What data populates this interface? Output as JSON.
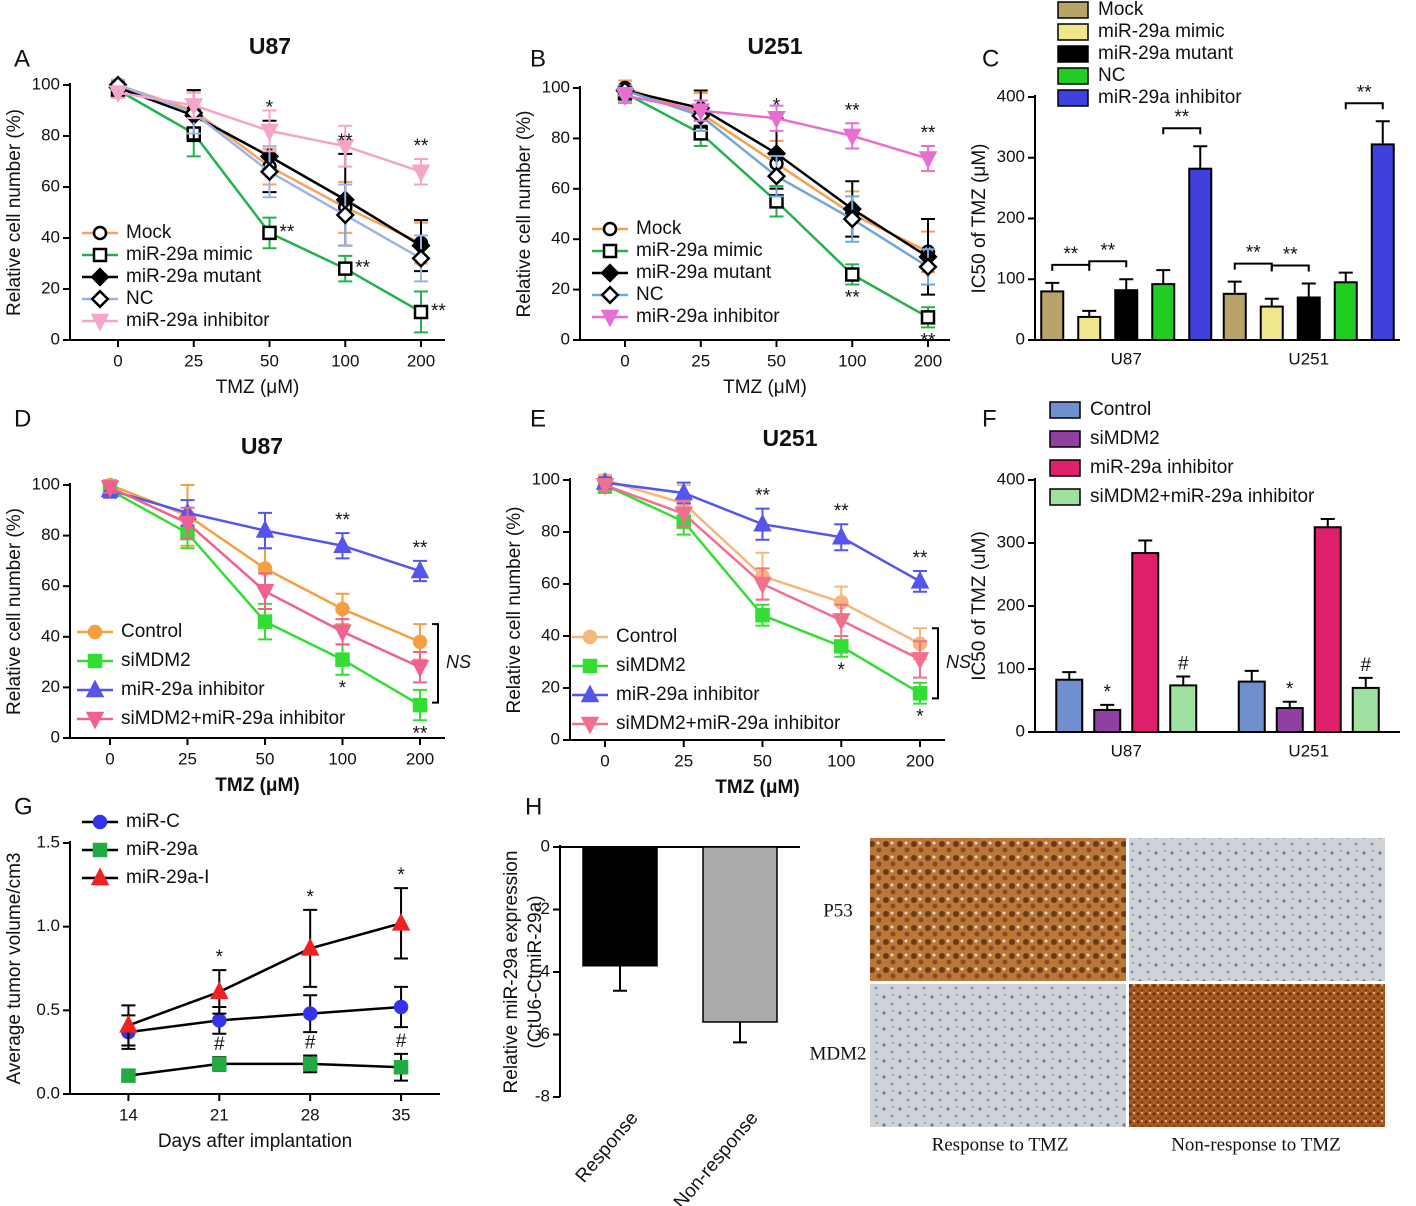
{
  "chart_data": [
    {
      "type": "line",
      "label": "A",
      "title": "U87",
      "xlabel": "TMZ (μM)",
      "ylabel": "Relative cell number (%)",
      "categories": [
        "0",
        "25",
        "50",
        "100",
        "200"
      ],
      "ylim": [
        0,
        100
      ],
      "yticks": [
        0,
        20,
        40,
        60,
        80,
        100
      ],
      "series": [
        {
          "name": "Mock",
          "color": "#f4a460",
          "marker": "circle",
          "hollow": true,
          "values": [
            100,
            90,
            68,
            52,
            38
          ],
          "errors": [
            2,
            8,
            7,
            10,
            8
          ]
        },
        {
          "name": "miR-29a mimic",
          "color": "#22b14c",
          "marker": "square",
          "hollow": true,
          "values": [
            98,
            81,
            42,
            28,
            11
          ],
          "errors": [
            3,
            9,
            6,
            5,
            8
          ]
        },
        {
          "name": "miR-29a mutant",
          "color": "#000000",
          "marker": "diamond",
          "hollow": false,
          "values": [
            99,
            88,
            72,
            55,
            37
          ],
          "errors": [
            2,
            10,
            14,
            18,
            10
          ]
        },
        {
          "name": "NC",
          "color": "#9db3e8",
          "marker": "diamond",
          "hollow": true,
          "values": [
            100,
            89,
            66,
            49,
            32
          ],
          "errors": [
            2,
            8,
            10,
            12,
            9
          ]
        },
        {
          "name": "miR-29a inhibitor",
          "color": "#f4a6c8",
          "marker": "triangle-down",
          "hollow": false,
          "values": [
            97,
            92,
            82,
            76,
            66
          ],
          "errors": [
            2,
            5,
            8,
            8,
            5
          ]
        }
      ],
      "annotations": [
        {
          "text": "*",
          "x": "50",
          "series": "miR-29a mutant",
          "position": "above"
        },
        {
          "text": "**",
          "x": "50",
          "series": "miR-29a mimic",
          "position": "right"
        },
        {
          "text": "**",
          "x": "100",
          "series": "miR-29a mutant",
          "position": "above"
        },
        {
          "text": "**",
          "x": "100",
          "series": "miR-29a mimic",
          "position": "right"
        },
        {
          "text": "**",
          "x": "200",
          "series": "miR-29a inhibitor",
          "position": "above"
        },
        {
          "text": "**",
          "x": "200",
          "series": "miR-29a mimic",
          "position": "right"
        }
      ]
    },
    {
      "type": "line",
      "label": "B",
      "title": "U251",
      "xlabel": "TMZ (μM)",
      "ylabel": "Relative cell number (%)",
      "categories": [
        "0",
        "25",
        "50",
        "100",
        "200"
      ],
      "ylim": [
        0,
        100
      ],
      "yticks": [
        0,
        20,
        40,
        60,
        80,
        100
      ],
      "series": [
        {
          "name": "Mock",
          "color": "#f5a04a",
          "marker": "circle",
          "hollow": true,
          "values": [
            100,
            90,
            70,
            50,
            35
          ],
          "errors": [
            3,
            8,
            9,
            9,
            8
          ]
        },
        {
          "name": "miR-29a mimic",
          "color": "#22b14c",
          "marker": "square",
          "hollow": true,
          "values": [
            98,
            82,
            55,
            26,
            9
          ],
          "errors": [
            3,
            5,
            6,
            4,
            4
          ]
        },
        {
          "name": "miR-29a mutant",
          "color": "#000000",
          "marker": "diamond",
          "hollow": false,
          "values": [
            99,
            92,
            74,
            52,
            33
          ],
          "errors": [
            2,
            7,
            14,
            11,
            15
          ]
        },
        {
          "name": "NC",
          "color": "#6fa8dc",
          "marker": "diamond",
          "hollow": true,
          "values": [
            99,
            89,
            65,
            48,
            29
          ],
          "errors": [
            2,
            6,
            8,
            9,
            7
          ]
        },
        {
          "name": "miR-29a inhibitor",
          "color": "#e86fcf",
          "marker": "triangle-down",
          "hollow": false,
          "values": [
            97,
            91,
            88,
            81,
            72
          ],
          "errors": [
            3,
            4,
            5,
            5,
            5
          ]
        }
      ],
      "annotations": [
        {
          "text": "*",
          "x": "50",
          "series": "miR-29a mutant",
          "position": "above"
        },
        {
          "text": "**",
          "x": "100",
          "series": "miR-29a inhibitor",
          "position": "above"
        },
        {
          "text": "**",
          "x": "100",
          "series": "miR-29a mimic",
          "position": "below"
        },
        {
          "text": "**",
          "x": "200",
          "series": "miR-29a inhibitor",
          "position": "above"
        },
        {
          "text": "**",
          "x": "200",
          "series": "miR-29a mimic",
          "position": "below"
        }
      ]
    },
    {
      "type": "bar",
      "label": "C",
      "ylabel": "IC50 of TMZ (μM)",
      "categories": [
        "U87",
        "U251"
      ],
      "ylim": [
        0,
        400
      ],
      "yticks": [
        0,
        100,
        200,
        300,
        400
      ],
      "series": [
        {
          "name": "Mock",
          "color": "#b8a46a",
          "values": [
            80,
            76
          ],
          "errors": [
            14,
            20
          ]
        },
        {
          "name": "miR-29a mimic",
          "color": "#f0e68c",
          "values": [
            38,
            55
          ],
          "errors": [
            10,
            13
          ]
        },
        {
          "name": "miR-29a mutant",
          "color": "#000000",
          "values": [
            82,
            70
          ],
          "errors": [
            18,
            23
          ]
        },
        {
          "name": "NC",
          "color": "#22cc22",
          "values": [
            92,
            95
          ],
          "errors": [
            23,
            16
          ]
        },
        {
          "name": "miR-29a inhibitor",
          "color": "#4040dd",
          "values": [
            282,
            322
          ],
          "errors": [
            37,
            38
          ]
        }
      ],
      "annotations": [
        {
          "text": "**",
          "x": "U87",
          "series": [
            "Mock",
            "miR-29a mimic"
          ]
        },
        {
          "text": "**",
          "x": "U87",
          "series": [
            "miR-29a mimic",
            "miR-29a mutant"
          ]
        },
        {
          "text": "**",
          "x": "U87",
          "series": [
            "NC",
            "miR-29a inhibitor"
          ]
        },
        {
          "text": "**",
          "x": "U251",
          "series": [
            "Mock",
            "miR-29a mimic"
          ]
        },
        {
          "text": "**",
          "x": "U251",
          "series": [
            "miR-29a mimic",
            "miR-29a mutant"
          ]
        },
        {
          "text": "**",
          "x": "U251",
          "series": [
            "NC",
            "miR-29a inhibitor"
          ]
        }
      ]
    },
    {
      "type": "line",
      "label": "D",
      "title": "U87",
      "xlabel": "TMZ (μM)",
      "ylabel": "Relative cell number (%)",
      "categories": [
        "0",
        "25",
        "50",
        "100",
        "200"
      ],
      "ylim": [
        0,
        100
      ],
      "yticks": [
        0,
        20,
        40,
        60,
        80,
        100
      ],
      "series": [
        {
          "name": "Control",
          "color": "#f5a040",
          "marker": "circle",
          "hollow": false,
          "values": [
            100,
            88,
            67,
            51,
            38
          ],
          "errors": [
            2,
            12,
            8,
            6,
            7
          ]
        },
        {
          "name": "siMDM2",
          "color": "#33dd33",
          "marker": "square",
          "hollow": false,
          "values": [
            98,
            81,
            46,
            31,
            13
          ],
          "errors": [
            3,
            6,
            7,
            6,
            6
          ]
        },
        {
          "name": "miR-29a inhibitor",
          "color": "#5555ee",
          "marker": "triangle",
          "hollow": false,
          "values": [
            98,
            89,
            82,
            76,
            66
          ],
          "errors": [
            3,
            5,
            7,
            5,
            4
          ]
        },
        {
          "name": "siMDM2+miR-29a inhibitor",
          "color": "#f06090",
          "marker": "triangle-down",
          "hollow": false,
          "values": [
            99,
            85,
            58,
            42,
            28
          ],
          "errors": [
            2,
            6,
            7,
            5,
            6
          ]
        }
      ],
      "annotations": [
        {
          "text": "**",
          "x": "100",
          "series": "miR-29a inhibitor",
          "position": "above"
        },
        {
          "text": "**",
          "x": "200",
          "series": "miR-29a inhibitor",
          "position": "above"
        },
        {
          "text": "*",
          "x": "100",
          "series": "siMDM2",
          "position": "below"
        },
        {
          "text": "**",
          "x": "200",
          "series": "siMDM2",
          "position": "below"
        },
        {
          "text": "NS",
          "x": "200",
          "series": [
            "Control",
            "siMDM2+miR-29a inhibitor"
          ]
        }
      ]
    },
    {
      "type": "line",
      "label": "E",
      "title": "U251",
      "xlabel": "TMZ (μM)",
      "ylabel": "Relative cell number (%)",
      "categories": [
        "0",
        "25",
        "50",
        "100",
        "200"
      ],
      "ylim": [
        0,
        100
      ],
      "yticks": [
        0,
        20,
        40,
        60,
        80,
        100
      ],
      "series": [
        {
          "name": "Control",
          "color": "#f5b87a",
          "marker": "circle",
          "hollow": false,
          "values": [
            100,
            91,
            63,
            53,
            37
          ],
          "errors": [
            2,
            7,
            9,
            6,
            6
          ]
        },
        {
          "name": "siMDM2",
          "color": "#33dd33",
          "marker": "square",
          "hollow": false,
          "values": [
            98,
            84,
            48,
            36,
            18
          ],
          "errors": [
            3,
            5,
            4,
            4,
            4
          ]
        },
        {
          "name": "miR-29a inhibitor",
          "color": "#5555ee",
          "marker": "triangle",
          "hollow": false,
          "values": [
            99,
            95,
            83,
            78,
            61
          ],
          "errors": [
            2,
            4,
            6,
            5,
            4
          ]
        },
        {
          "name": "siMDM2+miR-29a inhibitor",
          "color": "#f07090",
          "marker": "triangle-down",
          "hollow": false,
          "values": [
            98,
            87,
            60,
            46,
            31
          ],
          "errors": [
            2,
            5,
            6,
            6,
            7
          ]
        }
      ],
      "annotations": [
        {
          "text": "**",
          "x": "50",
          "series": "miR-29a inhibitor",
          "position": "above"
        },
        {
          "text": "**",
          "x": "100",
          "series": "miR-29a inhibitor",
          "position": "above"
        },
        {
          "text": "**",
          "x": "200",
          "series": "miR-29a inhibitor",
          "position": "above"
        },
        {
          "text": "*",
          "x": "100",
          "series": "siMDM2",
          "position": "below"
        },
        {
          "text": "*",
          "x": "200",
          "series": "siMDM2",
          "position": "below"
        },
        {
          "text": "NS",
          "x": "200",
          "series": [
            "Control",
            "siMDM2+miR-29a inhibitor"
          ]
        }
      ]
    },
    {
      "type": "bar",
      "label": "F",
      "ylabel": "IC50 of TMZ (uM)",
      "categories": [
        "U87",
        "U251"
      ],
      "ylim": [
        0,
        400
      ],
      "yticks": [
        0,
        100,
        200,
        300,
        400
      ],
      "series": [
        {
          "name": "Control",
          "color": "#6f8fcf",
          "values": [
            83,
            80
          ],
          "errors": [
            12,
            17
          ]
        },
        {
          "name": "siMDM2",
          "color": "#9040a0",
          "values": [
            35,
            38
          ],
          "errors": [
            8,
            10
          ]
        },
        {
          "name": "miR-29a inhibitor",
          "color": "#e0206a",
          "values": [
            284,
            325
          ],
          "errors": [
            20,
            13
          ]
        },
        {
          "name": "siMDM2+miR-29a inhibitor",
          "color": "#a0e0a0",
          "values": [
            74,
            70
          ],
          "errors": [
            14,
            16
          ]
        }
      ],
      "annotations": [
        {
          "text": "*",
          "x": "U87",
          "series": "siMDM2",
          "position": "above"
        },
        {
          "text": "#",
          "x": "U87",
          "series": "siMDM2+miR-29a inhibitor",
          "position": "above"
        },
        {
          "text": "*",
          "x": "U251",
          "series": "siMDM2",
          "position": "above"
        },
        {
          "text": "#",
          "x": "U251",
          "series": "siMDM2+miR-29a inhibitor",
          "position": "above"
        }
      ]
    },
    {
      "type": "line",
      "label": "G",
      "xlabel": "Days after implantation",
      "ylabel": "Average tumor volume/cm3",
      "x": [
        14,
        21,
        28,
        35
      ],
      "xlim": [
        9.5,
        38
      ],
      "xticks": [
        14,
        21,
        28,
        35
      ],
      "ylim": [
        0,
        1.5
      ],
      "yticks": [
        {
          "value": 0,
          "label": "0.0"
        },
        {
          "value": 0.5,
          "label": "0.5"
        },
        {
          "value": 1,
          "label": "1.0"
        },
        {
          "value": 1.5,
          "label": "1.5"
        }
      ],
      "line_color": "#000000",
      "series": [
        {
          "name": "miR-C",
          "color": "#3333ee",
          "marker": "circle",
          "hollow": false,
          "values": [
            0.37,
            0.44,
            0.48,
            0.52
          ],
          "errors": [
            0.1,
            0.08,
            0.11,
            0.12
          ]
        },
        {
          "name": "miR-29a",
          "color": "#22aa44",
          "marker": "square",
          "hollow": false,
          "values": [
            0.11,
            0.18,
            0.18,
            0.16
          ],
          "errors": [
            0.02,
            0.04,
            0.05,
            0.08
          ]
        },
        {
          "name": "miR-29a-I",
          "color": "#ee2222",
          "marker": "triangle",
          "hollow": false,
          "values": [
            0.41,
            0.61,
            0.87,
            1.02
          ],
          "errors": [
            0.12,
            0.13,
            0.23,
            0.21
          ]
        }
      ],
      "annotations": [
        {
          "text": "*",
          "x": 21,
          "series": "miR-29a-I",
          "position": "above"
        },
        {
          "text": "*",
          "x": 28,
          "series": "miR-29a-I",
          "position": "above"
        },
        {
          "text": "*",
          "x": 35,
          "series": "miR-29a-I",
          "position": "above"
        },
        {
          "text": "#",
          "x": 21,
          "series": "miR-29a",
          "position": "above"
        },
        {
          "text": "#",
          "x": 28,
          "series": "miR-29a",
          "position": "above"
        },
        {
          "text": "#",
          "x": 35,
          "series": "miR-29a",
          "position": "above"
        }
      ]
    },
    {
      "type": "bar",
      "label": "H",
      "ylabel": [
        "Relative miR-29a expression",
        "(CtU6-CtmiR-29a)"
      ],
      "categories": [
        "Response",
        "Non-response"
      ],
      "values": [
        -3.8,
        -5.6
      ],
      "errors": [
        0.8,
        0.65
      ],
      "colors": [
        "#000000",
        "#aaaaaa"
      ],
      "ylim": [
        -8,
        0
      ],
      "yticks": [
        -8,
        -6,
        -4,
        -2,
        0
      ]
    }
  ],
  "image_panel": {
    "rows": [
      "P53",
      "MDM2"
    ],
    "columns": [
      "Response to TMZ",
      "Non-response to TMZ"
    ]
  }
}
